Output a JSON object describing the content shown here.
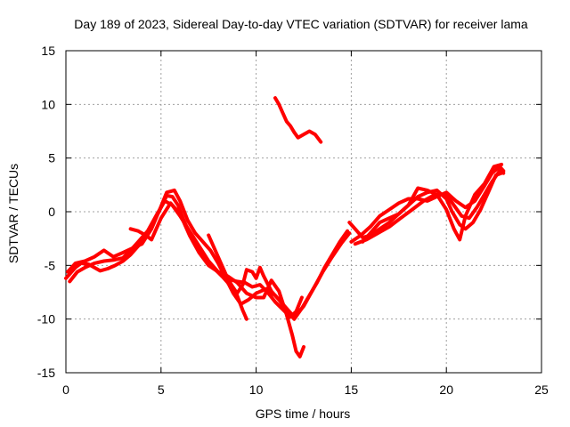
{
  "chart_data": {
    "type": "scatter",
    "title": "Day 189 of 2023, Sidereal Day-to-day VTEC variation (SDTVAR) for receiver lama",
    "xlabel": "GPS time / hours",
    "ylabel": "SDTVAR / TECUs",
    "xlim": [
      0,
      25
    ],
    "ylim": [
      -15,
      15
    ],
    "xticks": [
      0,
      5,
      10,
      15,
      20,
      25
    ],
    "yticks": [
      -15,
      -10,
      -5,
      0,
      5,
      10,
      15
    ],
    "grid": true,
    "color": "#ff0000",
    "series": [
      {
        "name": "track-1",
        "points": [
          [
            0.0,
            -6.2
          ],
          [
            0.2,
            -5.8
          ],
          [
            0.5,
            -5.2
          ],
          [
            0.8,
            -4.8
          ],
          [
            1.2,
            -4.9
          ],
          [
            1.5,
            -5.2
          ],
          [
            1.8,
            -5.5
          ],
          [
            2.2,
            -5.3
          ],
          [
            2.6,
            -5.0
          ],
          [
            3.0,
            -4.6
          ],
          [
            3.4,
            -4.0
          ],
          [
            3.8,
            -3.2
          ],
          [
            4.2,
            -2.3
          ],
          [
            4.6,
            -1.0
          ],
          [
            5.0,
            0.4
          ],
          [
            5.3,
            1.5
          ],
          [
            5.6,
            1.4
          ],
          [
            5.9,
            0.6
          ],
          [
            6.2,
            -0.8
          ],
          [
            6.6,
            -2.4
          ],
          [
            7.0,
            -3.6
          ],
          [
            7.4,
            -4.5
          ],
          [
            7.8,
            -5.3
          ],
          [
            8.2,
            -6.0
          ],
          [
            8.6,
            -6.3
          ],
          [
            9.0,
            -6.5
          ],
          [
            9.4,
            -6.6
          ],
          [
            9.8,
            -7.0
          ],
          [
            10.2,
            -6.8
          ],
          [
            10.6,
            -7.5
          ],
          [
            11.0,
            -8.4
          ],
          [
            11.4,
            -9.1
          ],
          [
            11.8,
            -9.8
          ],
          [
            12.1,
            -9.3
          ],
          [
            12.4,
            -8.0
          ]
        ]
      },
      {
        "name": "track-2",
        "points": [
          [
            0.1,
            -5.6
          ],
          [
            0.5,
            -4.8
          ],
          [
            1.0,
            -4.6
          ],
          [
            1.5,
            -4.2
          ],
          [
            2.0,
            -3.6
          ],
          [
            2.5,
            -4.2
          ],
          [
            3.0,
            -3.8
          ],
          [
            3.5,
            -3.4
          ],
          [
            4.0,
            -3.0
          ],
          [
            4.5,
            -1.6
          ],
          [
            5.0,
            0.5
          ],
          [
            5.3,
            1.8
          ],
          [
            5.7,
            2.0
          ],
          [
            6.0,
            1.0
          ],
          [
            6.4,
            -0.8
          ],
          [
            6.8,
            -2.0
          ],
          [
            7.2,
            -2.8
          ],
          [
            7.6,
            -3.6
          ],
          [
            8.0,
            -4.8
          ],
          [
            8.4,
            -6.2
          ],
          [
            8.8,
            -7.6
          ],
          [
            9.2,
            -8.6
          ],
          [
            9.6,
            -8.2
          ],
          [
            10.0,
            -7.6
          ],
          [
            10.5,
            -7.2
          ],
          [
            11.0,
            -7.8
          ],
          [
            11.5,
            -8.8
          ],
          [
            12.0,
            -9.8
          ],
          [
            12.5,
            -8.8
          ],
          [
            13.0,
            -7.2
          ],
          [
            13.5,
            -5.6
          ],
          [
            14.0,
            -4.2
          ],
          [
            14.5,
            -2.9
          ],
          [
            14.9,
            -2.0
          ]
        ]
      },
      {
        "name": "track-3",
        "points": [
          [
            0.2,
            -6.5
          ],
          [
            0.6,
            -5.6
          ],
          [
            1.0,
            -5.2
          ],
          [
            1.5,
            -4.8
          ],
          [
            2.0,
            -4.6
          ],
          [
            2.5,
            -4.5
          ],
          [
            3.0,
            -4.3
          ],
          [
            3.4,
            -3.6
          ],
          [
            3.8,
            -2.8
          ],
          [
            4.3,
            -1.8
          ],
          [
            4.8,
            -0.2
          ],
          [
            5.2,
            1.0
          ],
          [
            5.6,
            0.6
          ],
          [
            6.0,
            -0.4
          ],
          [
            6.5,
            -1.8
          ],
          [
            7.0,
            -3.2
          ],
          [
            7.5,
            -4.6
          ],
          [
            8.0,
            -5.6
          ],
          [
            8.5,
            -6.6
          ],
          [
            9.0,
            -7.8
          ],
          [
            9.3,
            -9.2
          ],
          [
            9.5,
            -10.0
          ]
        ]
      },
      {
        "name": "track-4",
        "points": [
          [
            3.4,
            -1.6
          ],
          [
            3.8,
            -1.8
          ],
          [
            4.2,
            -2.2
          ],
          [
            4.5,
            -2.6
          ],
          [
            5.0,
            -0.6
          ],
          [
            5.5,
            0.8
          ],
          [
            6.0,
            -0.2
          ],
          [
            6.5,
            -2.2
          ],
          [
            7.0,
            -3.8
          ],
          [
            7.5,
            -5.0
          ],
          [
            8.0,
            -5.6
          ],
          [
            8.5,
            -6.0
          ],
          [
            9.0,
            -6.6
          ],
          [
            9.5,
            -7.6
          ],
          [
            10.0,
            -8.0
          ],
          [
            10.4,
            -8.0
          ],
          [
            10.8,
            -6.4
          ],
          [
            11.2,
            -7.4
          ],
          [
            11.6,
            -9.6
          ],
          [
            11.9,
            -11.5
          ],
          [
            12.1,
            -13.0
          ],
          [
            12.3,
            -13.5
          ],
          [
            12.5,
            -12.6
          ]
        ]
      },
      {
        "name": "track-5",
        "points": [
          [
            7.5,
            -2.2
          ],
          [
            7.8,
            -3.4
          ],
          [
            8.1,
            -4.6
          ],
          [
            8.4,
            -5.8
          ],
          [
            8.7,
            -6.8
          ],
          [
            9.0,
            -7.6
          ],
          [
            9.3,
            -6.8
          ],
          [
            9.5,
            -5.4
          ],
          [
            9.8,
            -5.6
          ],
          [
            10.0,
            -6.2
          ],
          [
            10.2,
            -5.2
          ],
          [
            10.4,
            -6.0
          ],
          [
            10.8,
            -7.4
          ],
          [
            11.2,
            -8.2
          ],
          [
            11.6,
            -9.2
          ],
          [
            12.0,
            -10.0
          ],
          [
            12.4,
            -9.0
          ],
          [
            12.8,
            -7.8
          ],
          [
            13.2,
            -6.6
          ],
          [
            13.6,
            -5.2
          ],
          [
            14.0,
            -4.0
          ],
          [
            14.4,
            -2.8
          ],
          [
            14.8,
            -1.8
          ]
        ]
      },
      {
        "name": "track-6",
        "points": [
          [
            11.0,
            10.6
          ],
          [
            11.2,
            10.0
          ],
          [
            11.4,
            9.2
          ],
          [
            11.6,
            8.4
          ],
          [
            11.8,
            8.0
          ],
          [
            12.0,
            7.4
          ],
          [
            12.2,
            6.9
          ],
          [
            12.5,
            7.2
          ],
          [
            12.8,
            7.5
          ],
          [
            13.1,
            7.2
          ],
          [
            13.4,
            6.5
          ]
        ]
      },
      {
        "name": "track-7",
        "points": [
          [
            15.0,
            -2.8
          ],
          [
            15.5,
            -2.2
          ],
          [
            16.0,
            -1.4
          ],
          [
            16.5,
            -0.4
          ],
          [
            17.0,
            0.2
          ],
          [
            17.5,
            0.8
          ],
          [
            18.0,
            1.2
          ],
          [
            18.5,
            1.2
          ],
          [
            19.0,
            1.0
          ],
          [
            19.5,
            1.4
          ],
          [
            20.0,
            1.8
          ],
          [
            20.5,
            1.0
          ],
          [
            21.0,
            0.4
          ],
          [
            21.5,
            1.0
          ],
          [
            22.0,
            2.4
          ],
          [
            22.4,
            3.6
          ],
          [
            22.8,
            4.2
          ],
          [
            23.0,
            3.8
          ]
        ]
      },
      {
        "name": "track-8",
        "points": [
          [
            14.9,
            -1.0
          ],
          [
            15.2,
            -1.6
          ],
          [
            15.6,
            -2.4
          ],
          [
            16.0,
            -2.2
          ],
          [
            16.5,
            -1.6
          ],
          [
            17.0,
            -1.0
          ],
          [
            17.5,
            -0.2
          ],
          [
            18.0,
            0.6
          ],
          [
            18.5,
            1.4
          ],
          [
            19.0,
            1.8
          ],
          [
            19.5,
            2.0
          ],
          [
            20.0,
            1.2
          ],
          [
            20.3,
            0.0
          ],
          [
            20.7,
            -1.2
          ],
          [
            21.0,
            -1.6
          ],
          [
            21.4,
            -1.0
          ],
          [
            21.8,
            0.2
          ],
          [
            22.2,
            1.8
          ],
          [
            22.6,
            3.4
          ],
          [
            22.9,
            3.6
          ]
        ]
      },
      {
        "name": "track-9",
        "points": [
          [
            15.6,
            -2.8
          ],
          [
            16.0,
            -2.0
          ],
          [
            16.5,
            -1.0
          ],
          [
            17.0,
            -0.6
          ],
          [
            17.5,
            -0.2
          ],
          [
            18.0,
            0.6
          ],
          [
            18.5,
            2.2
          ],
          [
            19.0,
            2.0
          ],
          [
            19.5,
            1.6
          ],
          [
            20.0,
            0.2
          ],
          [
            20.4,
            -1.6
          ],
          [
            20.7,
            -2.6
          ],
          [
            21.0,
            -0.4
          ],
          [
            21.5,
            1.6
          ],
          [
            22.0,
            2.6
          ],
          [
            22.5,
            4.2
          ],
          [
            22.9,
            4.4
          ]
        ]
      },
      {
        "name": "track-10",
        "points": [
          [
            15.2,
            -3.0
          ],
          [
            15.8,
            -2.6
          ],
          [
            16.4,
            -2.0
          ],
          [
            17.0,
            -1.4
          ],
          [
            17.6,
            -0.6
          ],
          [
            18.2,
            0.2
          ],
          [
            18.8,
            1.0
          ],
          [
            19.4,
            1.6
          ],
          [
            20.0,
            1.6
          ],
          [
            20.4,
            0.6
          ],
          [
            20.8,
            -0.4
          ],
          [
            21.2,
            -0.6
          ],
          [
            21.6,
            0.4
          ],
          [
            22.0,
            1.6
          ],
          [
            22.4,
            2.8
          ],
          [
            22.8,
            3.8
          ],
          [
            23.0,
            3.6
          ]
        ]
      }
    ]
  }
}
